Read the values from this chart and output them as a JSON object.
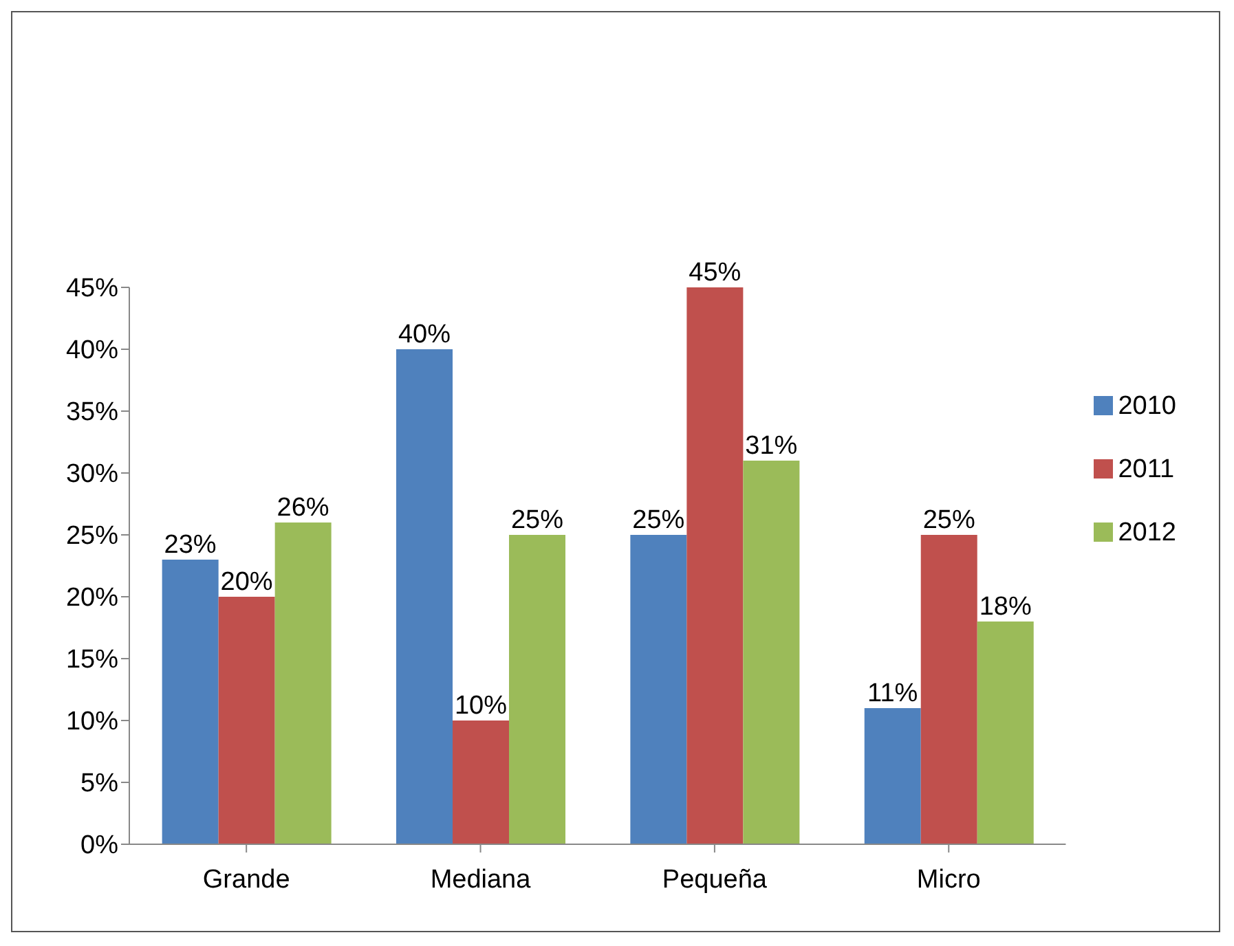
{
  "chart_data": {
    "type": "bar",
    "categories": [
      "Grande",
      "Mediana",
      "Pequeña",
      "Micro"
    ],
    "series": [
      {
        "name": "2010",
        "color": "#4f81bd",
        "values": [
          23,
          40,
          25,
          11
        ],
        "value_labels": [
          "23%",
          "40%",
          "25%",
          "11%"
        ]
      },
      {
        "name": "2011",
        "color": "#c0504d",
        "values": [
          20,
          10,
          45,
          25
        ],
        "value_labels": [
          "20%",
          "10%",
          "45%",
          "25%"
        ]
      },
      {
        "name": "2012",
        "color": "#9bbb59",
        "values": [
          26,
          25,
          31,
          18
        ],
        "value_labels": [
          "26%",
          "25%",
          "31%",
          "18%"
        ]
      }
    ],
    "ylim": [
      0,
      45
    ],
    "yticks": [
      {
        "value": 0,
        "label": "0%"
      },
      {
        "value": 5,
        "label": "5%"
      },
      {
        "value": 10,
        "label": "10%"
      },
      {
        "value": 15,
        "label": "15%"
      },
      {
        "value": 20,
        "label": "20%"
      },
      {
        "value": 25,
        "label": "25%"
      },
      {
        "value": 30,
        "label": "30%"
      },
      {
        "value": 35,
        "label": "35%"
      },
      {
        "value": 40,
        "label": "40%"
      },
      {
        "value": 45,
        "label": "45%"
      }
    ],
    "legend": "right",
    "grid": false
  }
}
